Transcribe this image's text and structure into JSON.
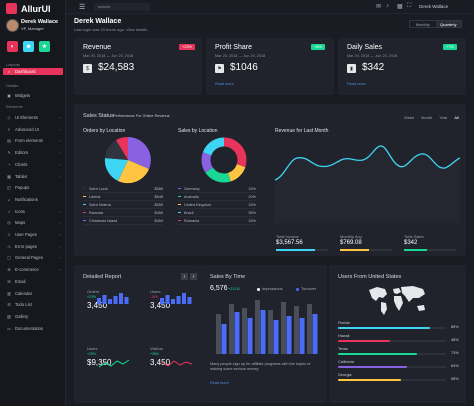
{
  "app": {
    "name": "AllurUI"
  },
  "user": {
    "name": "Derek Wallace",
    "role": "VP, Manager",
    "greeting": "Derek Wallace",
    "last_login": "Last login was 23 hours ago. View details"
  },
  "topbar": {
    "search_placeholder": "search",
    "user_name": "Derek Wallace"
  },
  "period": {
    "options": [
      "Monthly",
      "Quarterly"
    ],
    "selected": "Quarterly"
  },
  "sidebar": {
    "section_layouts": "Layouts",
    "section_details": "Details",
    "section_elements": "Elements",
    "items": [
      {
        "label": "Dashboard",
        "icon": "home-icon",
        "active": true
      },
      {
        "label": "Widgets",
        "icon": "widgets-icon"
      },
      {
        "label": "UI Elements",
        "icon": "ui-icon"
      },
      {
        "label": "Advanced UI",
        "icon": "layers-icon"
      },
      {
        "label": "Form elements",
        "icon": "form-icon"
      },
      {
        "label": "Editors",
        "icon": "edit-icon"
      },
      {
        "label": "Charts",
        "icon": "chart-icon"
      },
      {
        "label": "Tables",
        "icon": "table-icon"
      },
      {
        "label": "Popups",
        "icon": "popup-icon"
      },
      {
        "label": "Notifications",
        "icon": "bell-icon"
      },
      {
        "label": "Icons",
        "icon": "star-icon"
      },
      {
        "label": "Maps",
        "icon": "map-icon"
      },
      {
        "label": "User Pages",
        "icon": "user-icon"
      },
      {
        "label": "Error pages",
        "icon": "error-icon"
      },
      {
        "label": "General Pages",
        "icon": "page-icon"
      },
      {
        "label": "E-commerce",
        "icon": "cart-icon"
      },
      {
        "label": "Email",
        "icon": "mail-icon"
      },
      {
        "label": "Calendar",
        "icon": "calendar-icon"
      },
      {
        "label": "Todo List",
        "icon": "list-icon"
      },
      {
        "label": "Gallery",
        "icon": "gallery-icon"
      },
      {
        "label": "Documentation",
        "icon": "doc-icon"
      }
    ]
  },
  "stats": [
    {
      "title": "Revenue",
      "date": "Mar 20, 2018 — Jun 20, 2018",
      "badge": "+23%",
      "badge_color": "#e8335a",
      "value": "$24,583",
      "link": "",
      "icon": "dollar-icon"
    },
    {
      "title": "Profit Share",
      "date": "Mar 20, 2018 — Jun 20, 2018",
      "badge": "+8%",
      "badge_color": "#19d895",
      "value": "$1046",
      "link": "Read more",
      "icon": "share-icon"
    },
    {
      "title": "Daily Sales",
      "date": "Mar 20, 2018 — Jun 20, 2018",
      "badge": "+7%",
      "badge_color": "#19d895",
      "value": "$342",
      "link": "Read more",
      "icon": "sales-icon"
    }
  ],
  "sales_status": {
    "title": "Sales Status",
    "subtitle": "Performance For Online Revenue",
    "tabs": [
      "Week",
      "Month",
      "Year",
      "All"
    ],
    "selected_tab": "All",
    "orders": {
      "title": "Orders by Location",
      "rows": [
        {
          "name": "Saint Lucia",
          "value": "$586",
          "color": "#2f3440"
        },
        {
          "name": "Liberia",
          "value": "$548",
          "color": "#ffc542"
        },
        {
          "name": "Saint Helena",
          "value": "$559",
          "color": "#3dd5f3"
        },
        {
          "name": "Rwanda",
          "value": "$456",
          "color": "#e8335a"
        },
        {
          "name": "Christmas Island",
          "value": "$454",
          "color": "#8862e0"
        }
      ]
    },
    "sales": {
      "title": "Sales by Location",
      "rows": [
        {
          "name": "Germany",
          "value": "15%",
          "color": "#8862e0"
        },
        {
          "name": "Australia",
          "value": "20%",
          "color": "#19d895"
        },
        {
          "name": "United Kingdom",
          "value": "15%",
          "color": "#ffc542"
        },
        {
          "name": "Brazil",
          "value": "35%",
          "color": "#3dd5f3"
        },
        {
          "name": "Romania",
          "value": "15%",
          "color": "#e8335a"
        }
      ]
    },
    "revenue": {
      "title": "Revenue for Last Month",
      "kpis": [
        {
          "label": "Total Income",
          "value": "$3,567.56",
          "fill": 0.75,
          "color": "#3dd5f3"
        },
        {
          "label": "Monthly Avg",
          "value": "$769.08",
          "fill": 0.55,
          "color": "#ffc542"
        },
        {
          "label": "Total Sales",
          "value": "$342",
          "fill": 0.45,
          "color": "#19d895"
        }
      ]
    }
  },
  "detailed_report": {
    "title": "Detailed Report",
    "metrics": [
      {
        "label": "Orders",
        "value": "3,450",
        "pct": "+23%",
        "pct_color": "#19d895"
      },
      {
        "label": "Users",
        "value": "3,450",
        "pct": "-15%",
        "pct_color": "#e8335a"
      },
      {
        "label": "Users",
        "value": "$9,350",
        "pct": "+25%",
        "pct_color": "#19d895"
      },
      {
        "label": "Visitors",
        "value": "3,450",
        "pct": "+35%",
        "pct_color": "#19d895"
      }
    ]
  },
  "sales_by_time": {
    "title": "Sales By Time",
    "value": "6,576",
    "change": "+23.00",
    "legend": [
      "Impressions",
      "Turnover"
    ],
    "desc": "Many people sign up for affiliate programs with the hopes of making some serious money.",
    "link": "Read more"
  },
  "users_from_us": {
    "title": "Users From United States",
    "rows": [
      {
        "label": "Florida",
        "pct": "85%",
        "fill": 0.85,
        "color": "#3dd5f3"
      },
      {
        "label": "Hawaii",
        "pct": "48%",
        "fill": 0.48,
        "color": "#e8335a"
      },
      {
        "label": "Texas",
        "pct": "73%",
        "fill": 0.73,
        "color": "#19d895"
      },
      {
        "label": "California",
        "pct": "64%",
        "fill": 0.64,
        "color": "#8862e0"
      },
      {
        "label": "Georgia",
        "pct": "58%",
        "fill": 0.58,
        "color": "#ffc542"
      }
    ]
  }
}
